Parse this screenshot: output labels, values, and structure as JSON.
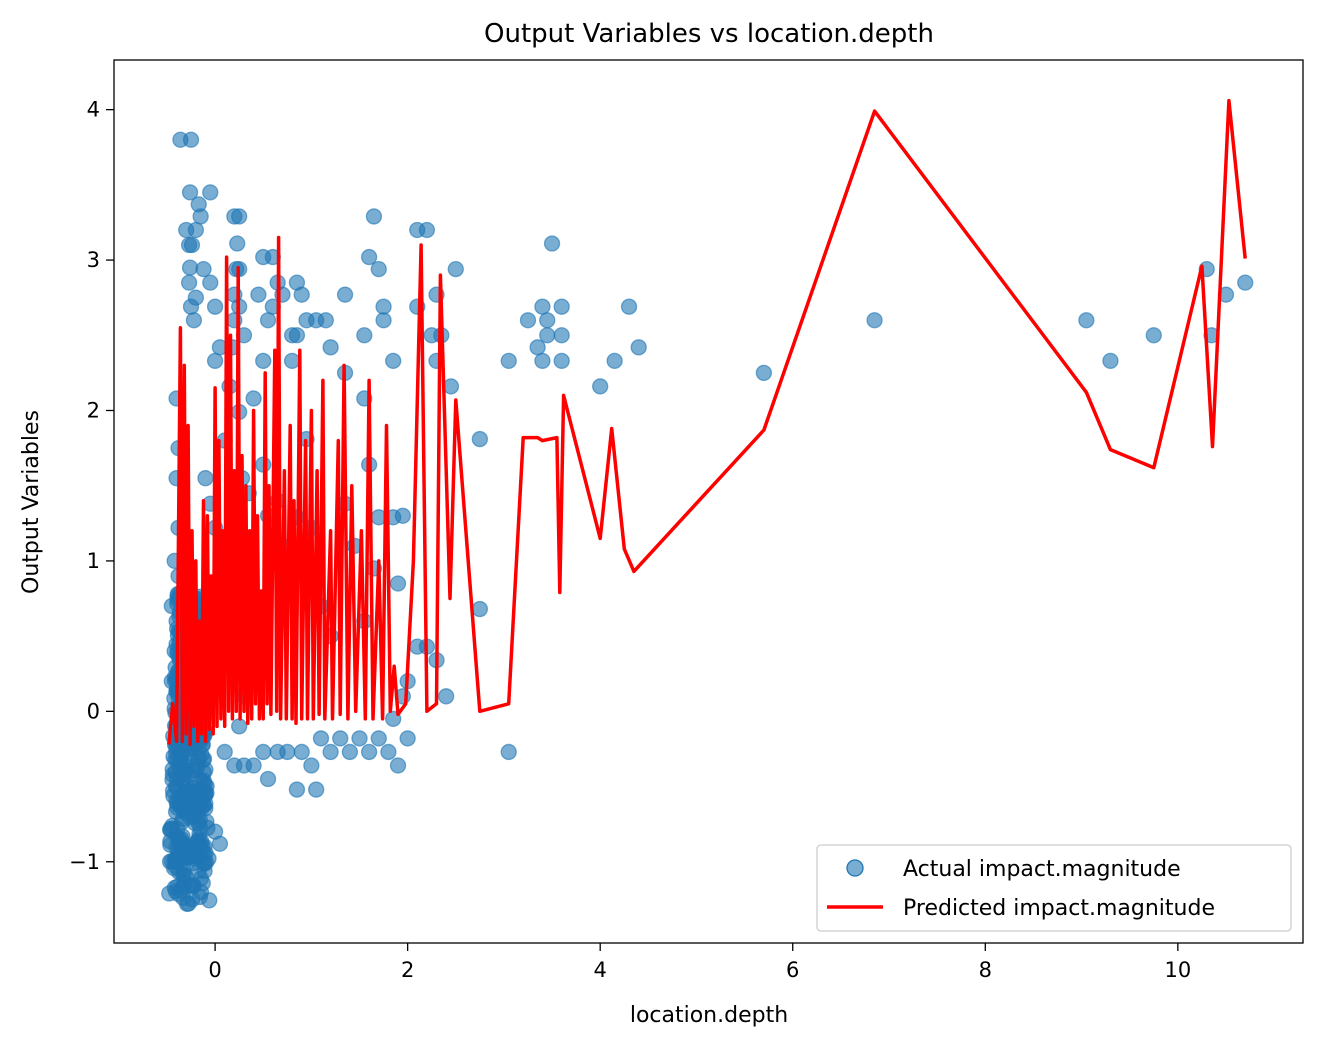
{
  "chart_data": {
    "type": "scatter",
    "title": "Output Variables vs location.depth",
    "xlabel": "location.depth",
    "ylabel": "Output Variables",
    "xlim": [
      -1.05,
      11.3
    ],
    "ylim": [
      -1.54,
      4.33
    ],
    "x_ticks": [
      0,
      2,
      4,
      6,
      8,
      10
    ],
    "y_ticks": [
      -1,
      0,
      1,
      2,
      3,
      4
    ],
    "x_tick_labels": [
      "0",
      "2",
      "4",
      "6",
      "8",
      "10"
    ],
    "y_tick_labels": [
      "−1",
      "0",
      "1",
      "2",
      "3",
      "4"
    ],
    "grid": false,
    "legend_position": "lower-right",
    "colors": {
      "actual": "#1f77b4",
      "predicted": "#ff0000"
    },
    "series": [
      {
        "name": "Actual impact.magnitude",
        "kind": "scatter",
        "points": [
          [
            -0.36,
            3.8
          ],
          [
            -0.25,
            3.8
          ],
          [
            -0.26,
            3.45
          ],
          [
            -0.05,
            3.45
          ],
          [
            -0.17,
            3.37
          ],
          [
            -0.3,
            3.2
          ],
          [
            -0.2,
            3.2
          ],
          [
            -0.15,
            3.29
          ],
          [
            -0.27,
            3.1
          ],
          [
            -0.24,
            3.1
          ],
          [
            -0.26,
            2.95
          ],
          [
            -0.12,
            2.94
          ],
          [
            -0.27,
            2.85
          ],
          [
            -0.05,
            2.85
          ],
          [
            -0.2,
            2.75
          ],
          [
            0.0,
            2.69
          ],
          [
            -0.25,
            2.69
          ],
          [
            -0.22,
            2.6
          ],
          [
            0.2,
            3.29
          ],
          [
            0.25,
            3.29
          ],
          [
            0.23,
            3.11
          ],
          [
            0.22,
            2.94
          ],
          [
            0.25,
            2.94
          ],
          [
            0.2,
            2.77
          ],
          [
            0.25,
            2.69
          ],
          [
            0.3,
            2.5
          ],
          [
            0.05,
            2.42
          ],
          [
            0.18,
            2.42
          ],
          [
            0.0,
            2.33
          ],
          [
            0.2,
            2.6
          ],
          [
            0.5,
            3.02
          ],
          [
            0.6,
            3.02
          ],
          [
            0.45,
            2.77
          ],
          [
            0.65,
            2.85
          ],
          [
            0.85,
            2.85
          ],
          [
            0.7,
            2.77
          ],
          [
            0.9,
            2.77
          ],
          [
            0.6,
            2.69
          ],
          [
            0.55,
            2.6
          ],
          [
            0.5,
            2.33
          ],
          [
            0.8,
            2.5
          ],
          [
            0.85,
            2.5
          ],
          [
            0.95,
            2.6
          ],
          [
            1.05,
            2.6
          ],
          [
            1.15,
            2.6
          ],
          [
            0.8,
            2.33
          ],
          [
            1.2,
            2.42
          ],
          [
            1.35,
            2.77
          ],
          [
            1.35,
            2.25
          ],
          [
            1.65,
            3.29
          ],
          [
            1.6,
            3.02
          ],
          [
            1.7,
            2.94
          ],
          [
            1.75,
            2.69
          ],
          [
            1.75,
            2.6
          ],
          [
            1.55,
            2.5
          ],
          [
            1.85,
            2.33
          ],
          [
            2.1,
            3.2
          ],
          [
            2.2,
            3.2
          ],
          [
            2.1,
            2.69
          ],
          [
            2.3,
            2.77
          ],
          [
            2.25,
            2.5
          ],
          [
            2.35,
            2.5
          ],
          [
            2.3,
            2.33
          ],
          [
            2.45,
            2.16
          ],
          [
            2.5,
            2.94
          ],
          [
            2.75,
            1.81
          ],
          [
            3.25,
            2.6
          ],
          [
            3.05,
            2.33
          ],
          [
            3.35,
            2.42
          ],
          [
            3.4,
            2.69
          ],
          [
            3.45,
            2.6
          ],
          [
            3.45,
            2.5
          ],
          [
            3.5,
            3.11
          ],
          [
            3.4,
            2.33
          ],
          [
            3.6,
            2.69
          ],
          [
            3.6,
            2.5
          ],
          [
            3.6,
            2.33
          ],
          [
            4.0,
            2.16
          ],
          [
            4.15,
            2.33
          ],
          [
            4.3,
            2.69
          ],
          [
            4.4,
            2.42
          ],
          [
            5.7,
            2.25
          ],
          [
            6.85,
            2.6
          ],
          [
            9.05,
            2.6
          ],
          [
            9.3,
            2.33
          ],
          [
            9.75,
            2.5
          ],
          [
            10.3,
            2.94
          ],
          [
            10.35,
            2.5
          ],
          [
            10.5,
            2.77
          ],
          [
            10.7,
            2.85
          ],
          [
            -0.4,
            2.08
          ],
          [
            -0.38,
            1.75
          ],
          [
            -0.4,
            1.55
          ],
          [
            -0.38,
            1.22
          ],
          [
            -0.42,
            1.0
          ],
          [
            -0.45,
            0.7
          ],
          [
            -0.42,
            0.4
          ],
          [
            -0.45,
            0.2
          ],
          [
            -0.4,
            0.6
          ],
          [
            -0.38,
            0.9
          ],
          [
            -0.1,
            1.55
          ],
          [
            -0.05,
            1.38
          ],
          [
            0.0,
            1.22
          ],
          [
            0.1,
            1.1
          ],
          [
            0.15,
            1.0
          ],
          [
            -0.02,
            0.85
          ],
          [
            0.12,
            0.6
          ],
          [
            0.2,
            0.3
          ],
          [
            0.3,
            0.1
          ],
          [
            0.25,
            -0.1
          ],
          [
            0.1,
            1.8
          ],
          [
            0.15,
            2.16
          ],
          [
            0.25,
            1.99
          ],
          [
            0.28,
            1.55
          ],
          [
            0.35,
            1.45
          ],
          [
            0.4,
            2.08
          ],
          [
            0.5,
            1.64
          ],
          [
            0.55,
            1.3
          ],
          [
            0.65,
            1.4
          ],
          [
            0.7,
            1.1
          ],
          [
            0.75,
            0.9
          ],
          [
            0.85,
            1.29
          ],
          [
            0.95,
            1.81
          ],
          [
            1.0,
            1.22
          ],
          [
            1.05,
            0.95
          ],
          [
            1.1,
            0.7
          ],
          [
            1.2,
            0.5
          ],
          [
            1.35,
            1.38
          ],
          [
            1.45,
            1.1
          ],
          [
            1.55,
            0.6
          ],
          [
            1.7,
            1.29
          ],
          [
            1.85,
            1.29
          ],
          [
            1.9,
            0.85
          ],
          [
            1.95,
            1.3
          ],
          [
            2.1,
            0.43
          ],
          [
            2.2,
            0.43
          ],
          [
            2.3,
            0.34
          ],
          [
            1.65,
            0.95
          ],
          [
            1.55,
            2.08
          ],
          [
            1.6,
            1.64
          ],
          [
            0.1,
            -0.27
          ],
          [
            0.2,
            -0.36
          ],
          [
            0.3,
            -0.36
          ],
          [
            0.4,
            -0.36
          ],
          [
            0.5,
            -0.27
          ],
          [
            0.55,
            -0.45
          ],
          [
            0.65,
            -0.27
          ],
          [
            0.75,
            -0.27
          ],
          [
            0.85,
            -0.52
          ],
          [
            0.9,
            -0.27
          ],
          [
            1.0,
            -0.36
          ],
          [
            1.05,
            -0.52
          ],
          [
            1.1,
            -0.18
          ],
          [
            1.2,
            -0.27
          ],
          [
            1.3,
            -0.18
          ],
          [
            1.4,
            -0.27
          ],
          [
            1.5,
            -0.18
          ],
          [
            1.6,
            -0.27
          ],
          [
            1.8,
            -0.27
          ],
          [
            1.9,
            -0.36
          ],
          [
            2.0,
            -0.18
          ],
          [
            1.7,
            -0.18
          ],
          [
            3.05,
            -0.27
          ],
          [
            0.0,
            -0.8
          ],
          [
            0.05,
            -0.88
          ],
          [
            2.75,
            0.68
          ],
          [
            1.95,
            0.1
          ],
          [
            1.85,
            -0.05
          ],
          [
            2.4,
            0.1
          ],
          [
            2.0,
            0.2
          ]
        ],
        "dense_cluster": {
          "x_range": [
            -0.5,
            -0.05
          ],
          "y_range": [
            -1.28,
            0.8
          ]
        }
      },
      {
        "name": "Predicted impact.magnitude",
        "kind": "line",
        "points": [
          [
            -0.48,
            -0.22
          ],
          [
            -0.44,
            0.05
          ],
          [
            -0.4,
            -0.2
          ],
          [
            -0.36,
            2.55
          ],
          [
            -0.34,
            -0.2
          ],
          [
            -0.32,
            2.3
          ],
          [
            -0.3,
            -0.15
          ],
          [
            -0.28,
            1.9
          ],
          [
            -0.26,
            -0.22
          ],
          [
            -0.24,
            1.2
          ],
          [
            -0.22,
            -0.1
          ],
          [
            -0.2,
            1.0
          ],
          [
            -0.18,
            -0.2
          ],
          [
            -0.16,
            0.6
          ],
          [
            -0.14,
            -0.15
          ],
          [
            -0.12,
            1.4
          ],
          [
            -0.1,
            -0.2
          ],
          [
            -0.08,
            1.3
          ],
          [
            -0.06,
            -0.12
          ],
          [
            -0.04,
            0.9
          ],
          [
            -0.02,
            -0.15
          ],
          [
            0.0,
            2.15
          ],
          [
            0.02,
            -0.1
          ],
          [
            0.04,
            1.8
          ],
          [
            0.06,
            -0.05
          ],
          [
            0.08,
            1.2
          ],
          [
            0.1,
            -0.1
          ],
          [
            0.12,
            3.02
          ],
          [
            0.14,
            0.0
          ],
          [
            0.16,
            2.5
          ],
          [
            0.18,
            -0.05
          ],
          [
            0.2,
            1.6
          ],
          [
            0.22,
            0.0
          ],
          [
            0.24,
            2.95
          ],
          [
            0.26,
            -0.05
          ],
          [
            0.28,
            1.7
          ],
          [
            0.3,
            0.0
          ],
          [
            0.32,
            1.5
          ],
          [
            0.34,
            -0.08
          ],
          [
            0.36,
            1.2
          ],
          [
            0.38,
            -0.05
          ],
          [
            0.4,
            2.0
          ],
          [
            0.42,
            0.05
          ],
          [
            0.44,
            1.3
          ],
          [
            0.46,
            -0.05
          ],
          [
            0.48,
            0.8
          ],
          [
            0.5,
            -0.05
          ],
          [
            0.52,
            2.25
          ],
          [
            0.54,
            0.05
          ],
          [
            0.56,
            1.5
          ],
          [
            0.58,
            -0.02
          ],
          [
            0.62,
            2.4
          ],
          [
            0.64,
            0.0
          ],
          [
            0.66,
            3.15
          ],
          [
            0.68,
            -0.05
          ],
          [
            0.72,
            1.6
          ],
          [
            0.74,
            -0.05
          ],
          [
            0.78,
            1.9
          ],
          [
            0.8,
            -0.05
          ],
          [
            0.82,
            1.4
          ],
          [
            0.84,
            -0.08
          ],
          [
            0.88,
            2.4
          ],
          [
            0.9,
            -0.05
          ],
          [
            0.94,
            1.8
          ],
          [
            0.96,
            -0.05
          ],
          [
            1.0,
            2.0
          ],
          [
            1.02,
            -0.05
          ],
          [
            1.06,
            1.6
          ],
          [
            1.08,
            -0.02
          ],
          [
            1.12,
            2.2
          ],
          [
            1.14,
            -0.05
          ],
          [
            1.2,
            1.2
          ],
          [
            1.22,
            -0.05
          ],
          [
            1.28,
            1.8
          ],
          [
            1.3,
            -0.02
          ],
          [
            1.34,
            2.3
          ],
          [
            1.38,
            -0.05
          ],
          [
            1.42,
            1.5
          ],
          [
            1.46,
            0.0
          ],
          [
            1.52,
            1.2
          ],
          [
            1.56,
            -0.05
          ],
          [
            1.6,
            2.2
          ],
          [
            1.64,
            -0.05
          ],
          [
            1.7,
            1.0
          ],
          [
            1.74,
            -0.05
          ],
          [
            1.78,
            1.9
          ],
          [
            1.82,
            0.0
          ],
          [
            1.86,
            0.3
          ],
          [
            1.9,
            -0.02
          ],
          [
            1.98,
            0.05
          ],
          [
            2.06,
            1.0
          ],
          [
            2.14,
            3.1
          ],
          [
            2.2,
            0.0
          ],
          [
            2.3,
            0.05
          ],
          [
            2.34,
            2.9
          ],
          [
            2.44,
            0.75
          ],
          [
            2.5,
            2.07
          ],
          [
            2.75,
            0.0
          ],
          [
            3.05,
            0.05
          ],
          [
            3.2,
            1.82
          ],
          [
            3.35,
            1.82
          ],
          [
            3.4,
            1.8
          ],
          [
            3.55,
            1.82
          ],
          [
            3.58,
            0.79
          ],
          [
            3.62,
            2.1
          ],
          [
            4.0,
            1.15
          ],
          [
            4.12,
            1.88
          ],
          [
            4.25,
            1.08
          ],
          [
            4.35,
            0.93
          ],
          [
            5.7,
            1.87
          ],
          [
            6.85,
            3.99
          ],
          [
            9.05,
            2.12
          ],
          [
            9.3,
            1.74
          ],
          [
            9.75,
            1.62
          ],
          [
            10.25,
            2.96
          ],
          [
            10.36,
            1.76
          ],
          [
            10.53,
            4.06
          ],
          [
            10.7,
            3.01
          ]
        ]
      }
    ]
  }
}
